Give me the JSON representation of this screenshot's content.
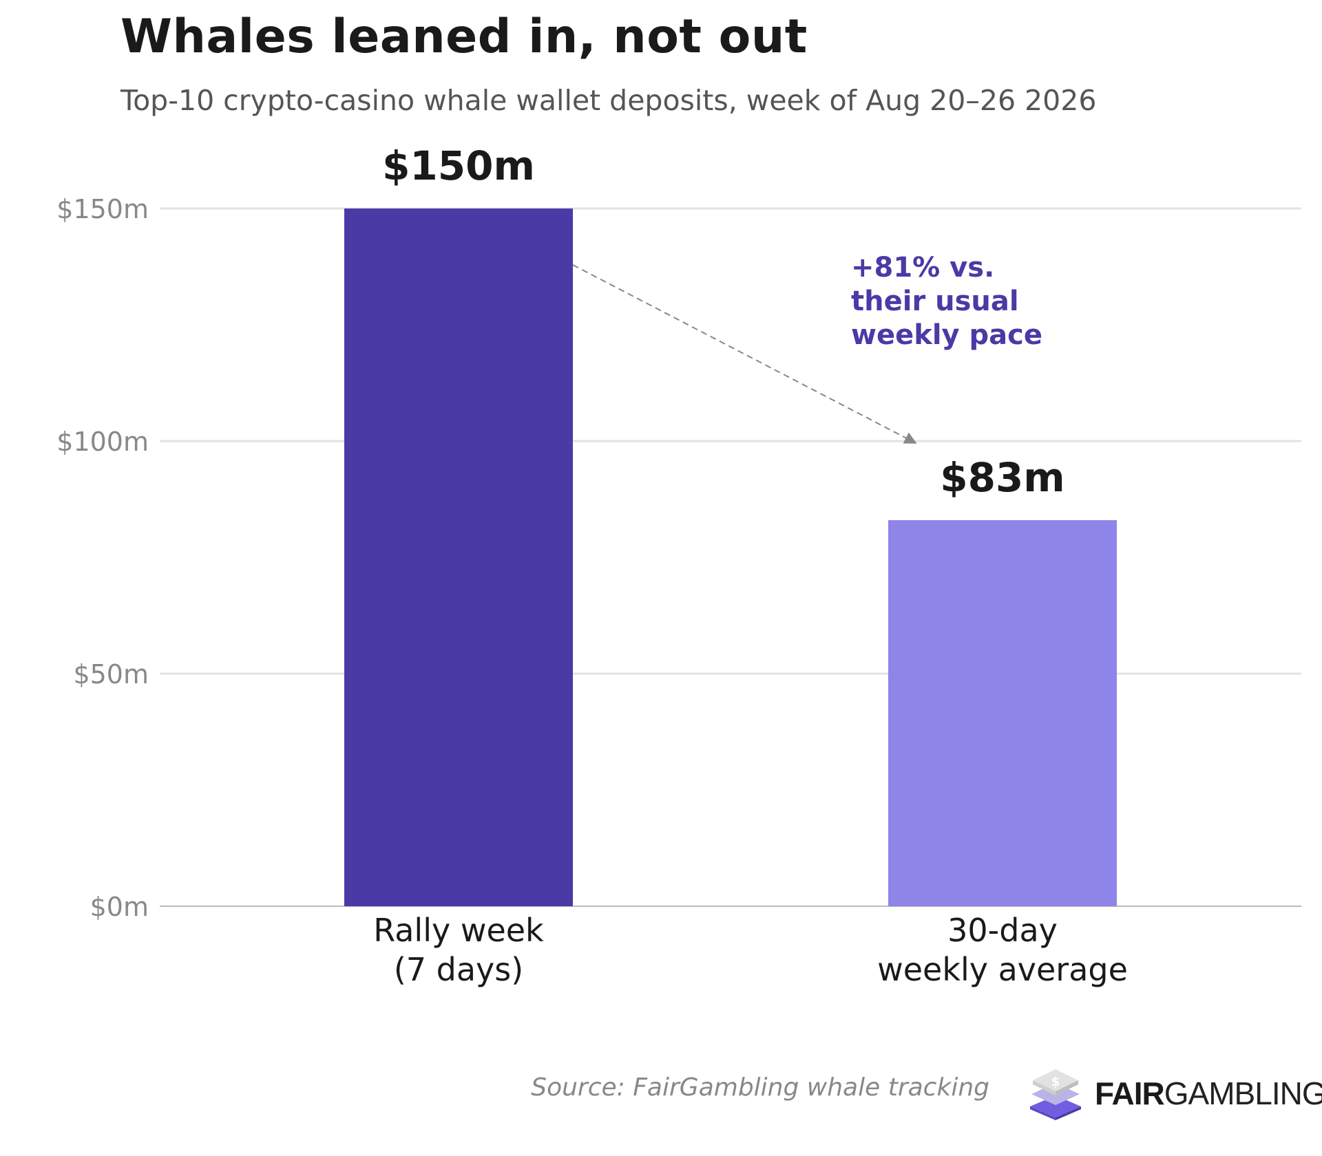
{
  "header": {
    "title": "Whales leaned in, not out",
    "subtitle": "Top-10 crypto-casino whale wallet deposits, week of Aug 20–26 2026"
  },
  "chart_data": {
    "type": "bar",
    "categories": [
      [
        "Rally week",
        "(7 days)"
      ],
      [
        "30-day",
        "weekly average"
      ]
    ],
    "values": [
      150,
      83
    ],
    "value_labels": [
      "$150m",
      "$83m"
    ],
    "bar_colors": [
      "#4a3aa6",
      "#8f84e8"
    ],
    "ylim": [
      0,
      150
    ],
    "yticks": [
      0,
      50,
      100,
      150
    ],
    "ytick_labels": [
      "$0m",
      "$50m",
      "$100m",
      "$150m"
    ],
    "grid": true,
    "annotation": {
      "lines": [
        "+81% vs.",
        "their usual",
        "weekly pace"
      ],
      "color": "#4a3aa6"
    }
  },
  "footer": {
    "source": "Source: FairGambling whale tracking",
    "brand_strong": "FAIR",
    "brand_light": "GAMBLING"
  },
  "icons": {
    "logo": "fairgambling-logo-icon"
  }
}
